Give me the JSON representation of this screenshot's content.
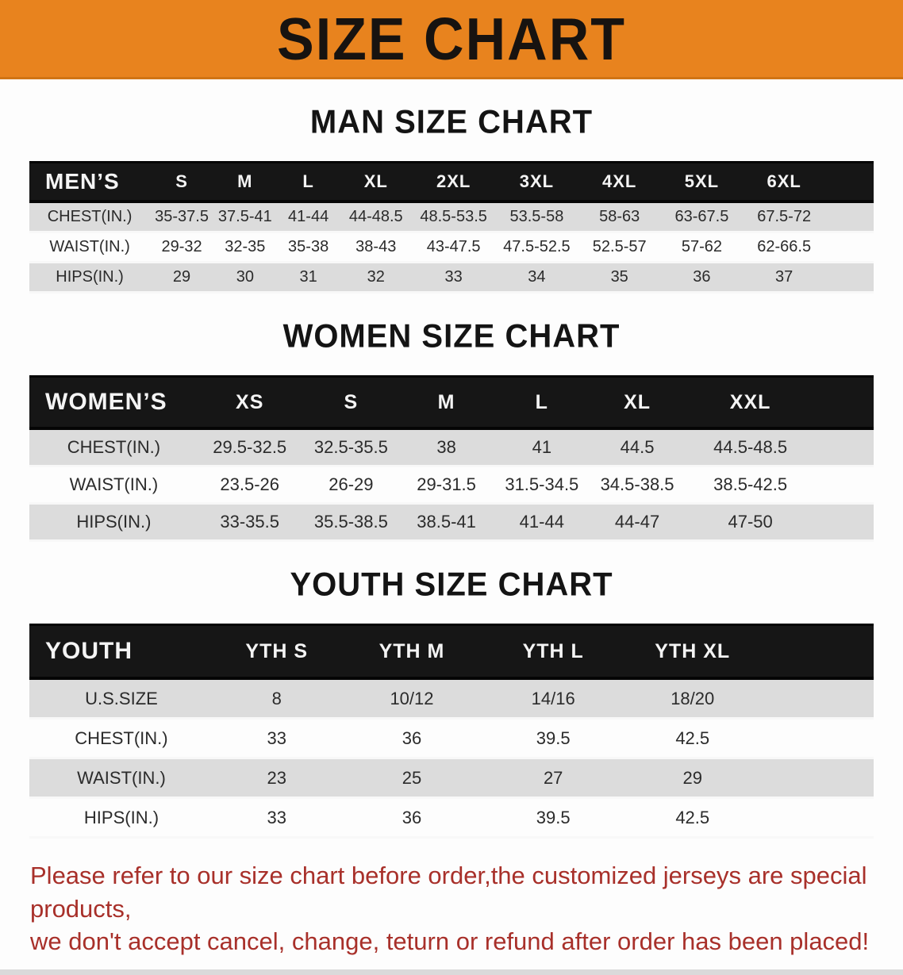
{
  "banner": {
    "title": "SIZE CHART"
  },
  "colors": {
    "banner_bg": "#e8831e",
    "header_band": "#161616",
    "row_gray": "#dcdcdc",
    "note_red": "#a8302a"
  },
  "sections": [
    {
      "heading": "MAN SIZE CHART",
      "table": {
        "header": [
          "MEN’S",
          "S",
          "M",
          "L",
          "XL",
          "2XL",
          "3XL",
          "4XL",
          "5XL",
          "6XL"
        ],
        "rows": [
          [
            "CHEST(IN.)",
            "35-37.5",
            "37.5-41",
            "41-44",
            "44-48.5",
            "48.5-53.5",
            "53.5-58",
            "58-63",
            "63-67.5",
            "67.5-72"
          ],
          [
            "WAIST(IN.)",
            "29-32",
            "32-35",
            "35-38",
            "38-43",
            "43-47.5",
            "47.5-52.5",
            "52.5-57",
            "57-62",
            "62-66.5"
          ],
          [
            "HIPS(IN.)",
            "29",
            "30",
            "31",
            "32",
            "33",
            "34",
            "35",
            "36",
            "37"
          ]
        ]
      }
    },
    {
      "heading": "WOMEN SIZE CHART",
      "table": {
        "header": [
          "WOMEN’S",
          "XS",
          "S",
          "M",
          "L",
          "XL",
          "XXL"
        ],
        "rows": [
          [
            "CHEST(IN.)",
            "29.5-32.5",
            "32.5-35.5",
            "38",
            "41",
            "44.5",
            "44.5-48.5"
          ],
          [
            "WAIST(IN.)",
            "23.5-26",
            "26-29",
            "29-31.5",
            "31.5-34.5",
            "34.5-38.5",
            "38.5-42.5"
          ],
          [
            "HIPS(IN.)",
            "33-35.5",
            "35.5-38.5",
            "38.5-41",
            "41-44",
            "44-47",
            "47-50"
          ]
        ]
      }
    },
    {
      "heading": "YOUTH SIZE CHART",
      "table": {
        "header": [
          "YOUTH",
          "YTH S",
          "YTH M",
          "YTH L",
          "YTH XL"
        ],
        "rows": [
          [
            "U.S.SIZE",
            "8",
            "10/12",
            "14/16",
            "18/20"
          ],
          [
            "CHEST(IN.)",
            "33",
            "36",
            "39.5",
            "42.5"
          ],
          [
            "WAIST(IN.)",
            "23",
            "25",
            "27",
            "29"
          ],
          [
            "HIPS(IN.)",
            "33",
            "36",
            "39.5",
            "42.5"
          ]
        ]
      }
    }
  ],
  "note": {
    "line1": "Please refer to our size chart before order,the customized jerseys are special products,",
    "line2": "we don't accept cancel, change, teturn or refund after order has been placed!"
  }
}
